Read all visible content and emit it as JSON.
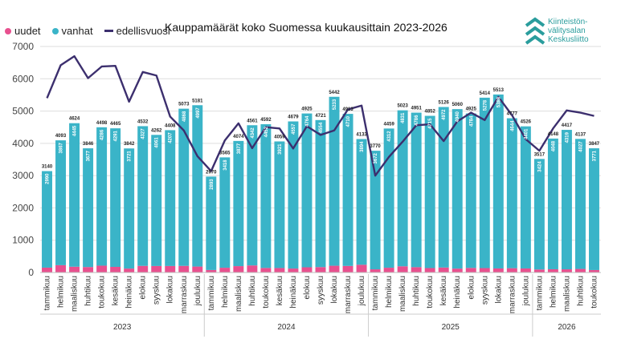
{
  "title": "Kauppamäärät koko Suomessa kuukausittain 2023-2026",
  "legend": [
    {
      "label": "uudet",
      "color": "#e8508f",
      "shape": "dot"
    },
    {
      "label": "vanhat",
      "color": "#3ab4c8",
      "shape": "dot"
    },
    {
      "label": "edellisvuosi",
      "color": "#3c2f6e",
      "shape": "line"
    }
  ],
  "logo": {
    "lines": [
      "Kiinteistön-",
      "välitysalan",
      "Keskusliitto"
    ],
    "color": "#2a9d9d",
    "icon": "chevron-stack-icon"
  },
  "chart_data": {
    "type": "bar",
    "stacked": true,
    "ylim": [
      0,
      7000
    ],
    "yticks": [
      0,
      1000,
      2000,
      3000,
      4000,
      5000,
      6000,
      7000
    ],
    "grid": true,
    "legend_position": "top-left",
    "categories": [
      "tammikuu",
      "helmikuu",
      "maaliskuu",
      "huhtikuu",
      "toukokuu",
      "kesäkuu",
      "heinäkuu",
      "elokuu",
      "syyskuu",
      "lokakuu",
      "marraskuu",
      "joulukuu",
      "tammikuu",
      "helmikuu",
      "maaliskuu",
      "huhtikuu",
      "toukokuu",
      "kesäkuu",
      "heinäkuu",
      "elokuu",
      "syyskuu",
      "lokakuu",
      "marraskuu",
      "joulukuu",
      "tammikuu",
      "helmikuu",
      "maaliskuu",
      "huhtikuu",
      "toukokuu",
      "kesäkuu",
      "heinäkuu",
      "elokuu",
      "syyskuu",
      "lokakuu",
      "marraskuu",
      "joulukuu",
      "tammikuu",
      "helmikuu",
      "maaliskuu",
      "huhtikuu",
      "toukokuu"
    ],
    "years": [
      {
        "label": "2023",
        "start": 0,
        "count": 12
      },
      {
        "label": "2024",
        "start": 12,
        "count": 12
      },
      {
        "label": "2025",
        "start": 24,
        "count": 12
      },
      {
        "label": "2026",
        "start": 36,
        "count": 5
      }
    ],
    "series": [
      {
        "name": "uudet",
        "color": "#e8508f",
        "values": [
          150,
          226,
          179,
          169,
          212,
          174,
          121,
          205,
          201,
          201,
          205,
          184,
          77,
          147,
          197,
          219,
          140,
          138,
          122,
          161,
          167,
          209,
          203,
          239,
          98,
          147,
          192,
          165,
          137,
          154,
          120,
          141,
          136,
          125,
          133,
          125,
          93,
          100,
          98,
          110,
          76
        ]
      },
      {
        "name": "vanhat",
        "color": "#3ab4c8",
        "values": [
          2990,
          3867,
          4445,
          3677,
          4286,
          4291,
          3721,
          4327,
          4061,
          4207,
          4868,
          4997,
          2893,
          3418,
          3877,
          4342,
          4452,
          3921,
          4557,
          4764,
          4554,
          5233,
          4710,
          3894,
          3672,
          4312,
          4831,
          4786,
          4715,
          4972,
          4940,
          4784,
          5278,
          5388,
          4644,
          4401,
          3424,
          4048,
          4319,
          4027,
          3771
        ]
      },
      {
        "name": "edellisvuosi",
        "color": "#3c2f6e",
        "type": "line",
        "values": [
          5400,
          6420,
          6700,
          6020,
          6380,
          6400,
          5290,
          6210,
          6100,
          4830,
          4400,
          3600,
          3140,
          4090,
          4620,
          3850,
          4500,
          4460,
          3840,
          4530,
          4260,
          4400,
          5050,
          5170,
          3000,
          3580,
          4050,
          4560,
          4590,
          4070,
          4680,
          4950,
          4720,
          5440,
          4870,
          4130,
          3770,
          4460,
          5020,
          4950,
          4850
        ]
      }
    ],
    "totals": [
      3140,
      4093,
      4624,
      3846,
      4498,
      4465,
      3842,
      4532,
      4262,
      4408,
      5073,
      5181,
      2970,
      3565,
      4074,
      4561,
      4592,
      4059,
      4679,
      4925,
      4721,
      5442,
      4913,
      4133,
      3770,
      4459,
      5023,
      4951,
      4852,
      5126,
      5060,
      4925,
      5414,
      5513,
      4777,
      4526,
      3517,
      4148,
      4417,
      4137,
      3847
    ]
  }
}
